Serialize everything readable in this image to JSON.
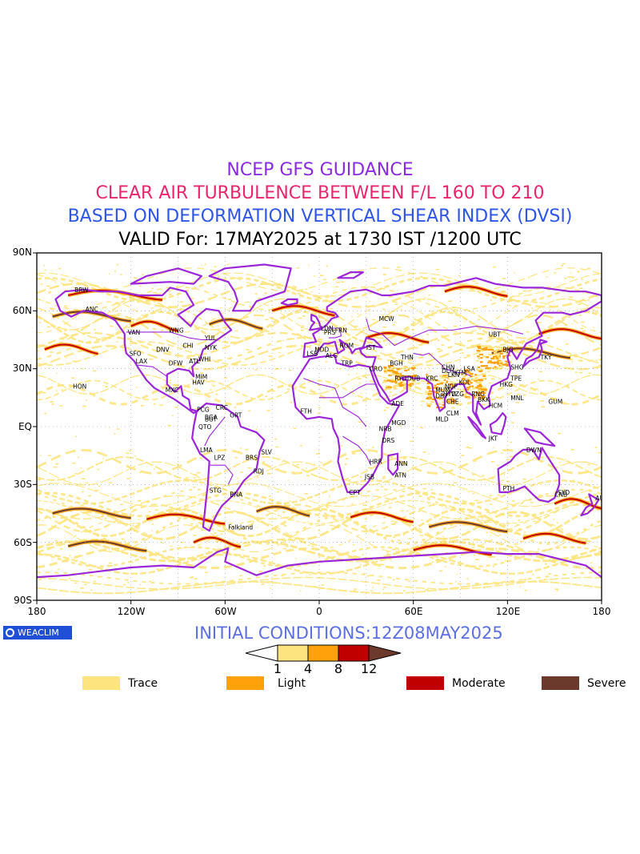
{
  "header": {
    "line1": "NCEP GFS GUIDANCE",
    "line2": "CLEAR AIR TURBULENCE BETWEEN F/L 160 TO 210",
    "line3": "BASED ON DEFORMATION VERTICAL SHEAR INDEX (DVSI)",
    "line4": "VALID For: 17MAY2025 at 1730 IST /1200 UTC"
  },
  "colors": {
    "line1": "#8a2be2",
    "line2": "#e8266d",
    "line3": "#2f55e8",
    "line4": "#000000",
    "coast": "#9b26d9",
    "trace": "#fde47f",
    "light": "#ffa10a",
    "moderate": "#c00000",
    "severe": "#6b3a2c"
  },
  "axes": {
    "lat_labels": [
      "90N",
      "60N",
      "30N",
      "EQ",
      "30S",
      "60S",
      "90S"
    ],
    "lon_labels": [
      "180",
      "120W",
      "60W",
      "0",
      "60E",
      "120E",
      "180"
    ]
  },
  "stations": [
    {
      "name": "ANC",
      "lon": -150,
      "lat": 61
    },
    {
      "name": "BRW",
      "lon": -157,
      "lat": 71
    },
    {
      "name": "VAN",
      "lon": -123,
      "lat": 49
    },
    {
      "name": "SFO",
      "lon": -122,
      "lat": 38
    },
    {
      "name": "LAX",
      "lon": -118,
      "lat": 34
    },
    {
      "name": "WNG",
      "lon": -97,
      "lat": 50
    },
    {
      "name": "YUL",
      "lon": -74,
      "lat": 46
    },
    {
      "name": "NYK",
      "lon": -74,
      "lat": 41
    },
    {
      "name": "CHI",
      "lon": -88,
      "lat": 42
    },
    {
      "name": "DNV",
      "lon": -105,
      "lat": 40
    },
    {
      "name": "ATL",
      "lon": -84,
      "lat": 34
    },
    {
      "name": "DFW",
      "lon": -97,
      "lat": 33
    },
    {
      "name": "WHI",
      "lon": -78,
      "lat": 35
    },
    {
      "name": "MIM",
      "lon": -80,
      "lat": 26
    },
    {
      "name": "HAV",
      "lon": -82,
      "lat": 23
    },
    {
      "name": "MXC",
      "lon": -99,
      "lat": 19
    },
    {
      "name": "HON",
      "lon": -158,
      "lat": 21
    },
    {
      "name": "PCG",
      "lon": -79,
      "lat": 9
    },
    {
      "name": "CRC",
      "lon": -67,
      "lat": 10
    },
    {
      "name": "BGA",
      "lon": -74,
      "lat": 5
    },
    {
      "name": "BGT",
      "lon": -74,
      "lat": 4
    },
    {
      "name": "QTO",
      "lon": -78,
      "lat": 0
    },
    {
      "name": "GRT",
      "lon": -58,
      "lat": 6
    },
    {
      "name": "LMA",
      "lon": -77,
      "lat": -12
    },
    {
      "name": "LPZ",
      "lon": -68,
      "lat": -16
    },
    {
      "name": "BRS",
      "lon": -48,
      "lat": -16
    },
    {
      "name": "SLV",
      "lon": -38,
      "lat": -13
    },
    {
      "name": "RDJ",
      "lon": -43,
      "lat": -23
    },
    {
      "name": "STG",
      "lon": -71,
      "lat": -33
    },
    {
      "name": "BNA",
      "lon": -58,
      "lat": -35
    },
    {
      "name": "Falkland",
      "lon": -59,
      "lat": -52
    },
    {
      "name": "LSB",
      "lon": -9,
      "lat": 38
    },
    {
      "name": "MDD",
      "lon": -4,
      "lat": 40
    },
    {
      "name": "LDN",
      "lon": 0,
      "lat": 51
    },
    {
      "name": "PRS",
      "lon": 2,
      "lat": 49
    },
    {
      "name": "FRN",
      "lon": 9,
      "lat": 50
    },
    {
      "name": "ROM",
      "lon": 12,
      "lat": 42
    },
    {
      "name": "IST",
      "lon": 29,
      "lat": 41
    },
    {
      "name": "MCW",
      "lon": 37,
      "lat": 56
    },
    {
      "name": "ALG",
      "lon": 3,
      "lat": 37
    },
    {
      "name": "TRP",
      "lon": 13,
      "lat": 33
    },
    {
      "name": "CRO",
      "lon": 31,
      "lat": 30
    },
    {
      "name": "BGH",
      "lon": 44,
      "lat": 33
    },
    {
      "name": "THN",
      "lon": 51,
      "lat": 36
    },
    {
      "name": "RYD",
      "lon": 47,
      "lat": 25
    },
    {
      "name": "DUB",
      "lon": 55,
      "lat": 25
    },
    {
      "name": "KRC",
      "lon": 67,
      "lat": 25
    },
    {
      "name": "DLH",
      "lon": 77,
      "lat": 29
    },
    {
      "name": "LKN",
      "lon": 81,
      "lat": 27
    },
    {
      "name": "KTM",
      "lon": 85,
      "lat": 28
    },
    {
      "name": "CHN",
      "lon": 77,
      "lat": 31
    },
    {
      "name": "NGP",
      "lon": 79,
      "lat": 21
    },
    {
      "name": "MUM",
      "lon": 73,
      "lat": 19
    },
    {
      "name": "KOL",
      "lon": 88,
      "lat": 23
    },
    {
      "name": "VZG",
      "lon": 83,
      "lat": 17
    },
    {
      "name": "HYD",
      "lon": 78,
      "lat": 17
    },
    {
      "name": "DBT",
      "lon": 73,
      "lat": 16
    },
    {
      "name": "CHE",
      "lon": 80,
      "lat": 13
    },
    {
      "name": "CLM",
      "lon": 80,
      "lat": 7
    },
    {
      "name": "MLD",
      "lon": 73,
      "lat": 4
    },
    {
      "name": "LSA",
      "lon": 91,
      "lat": 30
    },
    {
      "name": "BKK",
      "lon": 100,
      "lat": 14
    },
    {
      "name": "HCM",
      "lon": 107,
      "lat": 11
    },
    {
      "name": "RNG",
      "lon": 96,
      "lat": 17
    },
    {
      "name": "HKG",
      "lon": 114,
      "lat": 22
    },
    {
      "name": "TPE",
      "lon": 121,
      "lat": 25
    },
    {
      "name": "SHG",
      "lon": 121,
      "lat": 31
    },
    {
      "name": "BJG",
      "lon": 116,
      "lat": 40
    },
    {
      "name": "TKY",
      "lon": 140,
      "lat": 36
    },
    {
      "name": "MNL",
      "lon": 121,
      "lat": 15
    },
    {
      "name": "GUM",
      "lon": 145,
      "lat": 13
    },
    {
      "name": "UBT",
      "lon": 107,
      "lat": 48
    },
    {
      "name": "JKT",
      "lon": 107,
      "lat": -6
    },
    {
      "name": "DWN",
      "lon": 131,
      "lat": -12
    },
    {
      "name": "PTH",
      "lon": 116,
      "lat": -32
    },
    {
      "name": "SYD",
      "lon": 151,
      "lat": -34
    },
    {
      "name": "CNB",
      "lon": 149,
      "lat": -35
    },
    {
      "name": "AUT",
      "lon": 175,
      "lat": -37
    },
    {
      "name": "ADE",
      "lon": 45,
      "lat": 12
    },
    {
      "name": "MGD",
      "lon": 45,
      "lat": 2
    },
    {
      "name": "NRB",
      "lon": 37,
      "lat": -1
    },
    {
      "name": "DRS",
      "lon": 39,
      "lat": -7
    },
    {
      "name": "ANN",
      "lon": 47,
      "lat": -19
    },
    {
      "name": "ATN",
      "lon": 47,
      "lat": -25
    },
    {
      "name": "HRR",
      "lon": 31,
      "lat": -18
    },
    {
      "name": "JSB",
      "lon": 28,
      "lat": -26
    },
    {
      "name": "CPT",
      "lon": 18,
      "lat": -34
    },
    {
      "name": "FTH",
      "lon": -13,
      "lat": 8
    }
  ],
  "footer": {
    "logo_text": "WEACLIM",
    "logo_icon": "circle-logo-icon",
    "init_conditions": "INITIAL CONDITIONS:12Z08MAY2025",
    "scale_values": [
      "1",
      "4",
      "8",
      "12"
    ],
    "legend": [
      {
        "label": "Trace",
        "color": "#fde47f"
      },
      {
        "label": "Light",
        "color": "#ffa10a"
      },
      {
        "label": "Moderate",
        "color": "#c00000"
      },
      {
        "label": "Severe",
        "color": "#6b3a2c"
      }
    ]
  }
}
